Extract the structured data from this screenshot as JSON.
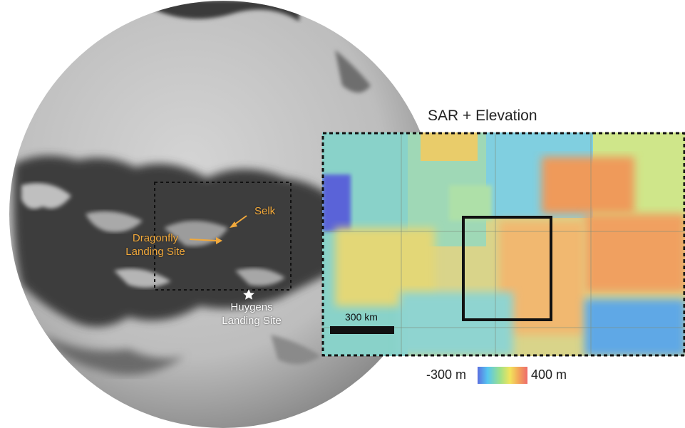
{
  "map": {
    "panel_title": "SAR + Elevation",
    "selk_label": "Selk",
    "dragonfly_label_line1": "Dragonfly",
    "dragonfly_label_line2": "Landing Site",
    "huygens_label_line1": "Huygens",
    "huygens_label_line2": "Landing Site",
    "scale_bar_label": "300 km",
    "colorbar": {
      "min_label": "-300 m",
      "max_label": "400 m",
      "colors": [
        "#5b6fe0",
        "#56c6f0",
        "#9de08a",
        "#f2e45c",
        "#f3a65a",
        "#ee6c6c"
      ]
    },
    "marker_colors": {
      "dragonfly": "#f2a93b",
      "huygens": "#ffffff"
    }
  }
}
